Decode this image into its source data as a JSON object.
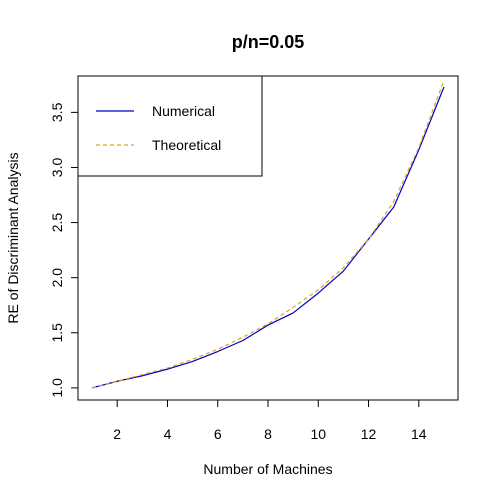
{
  "chart_data": {
    "type": "line",
    "title": "p/n=0.05",
    "xlabel": "Number of Machines",
    "ylabel": "RE of Discriminant Analysis",
    "x": [
      1,
      2,
      3,
      4,
      5,
      6,
      7,
      8,
      9,
      10,
      11,
      12,
      13,
      14,
      15
    ],
    "xlim": [
      0.44,
      15.56
    ],
    "ylim": [
      0.89,
      3.83
    ],
    "x_ticks": [
      2,
      4,
      6,
      8,
      10,
      12,
      14
    ],
    "y_ticks": [
      1.0,
      1.5,
      2.0,
      2.5,
      3.0,
      3.5
    ],
    "x_tick_labels": [
      "2",
      "4",
      "6",
      "8",
      "10",
      "12",
      "14"
    ],
    "y_tick_labels": [
      "1.0",
      "1.5",
      "2.0",
      "2.5",
      "3.0",
      "3.5"
    ],
    "grid": false,
    "legend_position": "top-left",
    "series": [
      {
        "name": "Numerical",
        "color": "#0000cc",
        "dash": "solid",
        "values": [
          1.0,
          1.06,
          1.11,
          1.17,
          1.24,
          1.33,
          1.43,
          1.57,
          1.68,
          1.86,
          2.06,
          2.35,
          2.64,
          3.16,
          3.73
        ]
      },
      {
        "name": "Theoretical",
        "color": "#e0a020",
        "dash": "dashed",
        "values": [
          1.0,
          1.06,
          1.12,
          1.18,
          1.26,
          1.35,
          1.46,
          1.58,
          1.73,
          1.89,
          2.09,
          2.35,
          2.69,
          3.18,
          3.79
        ]
      }
    ]
  }
}
